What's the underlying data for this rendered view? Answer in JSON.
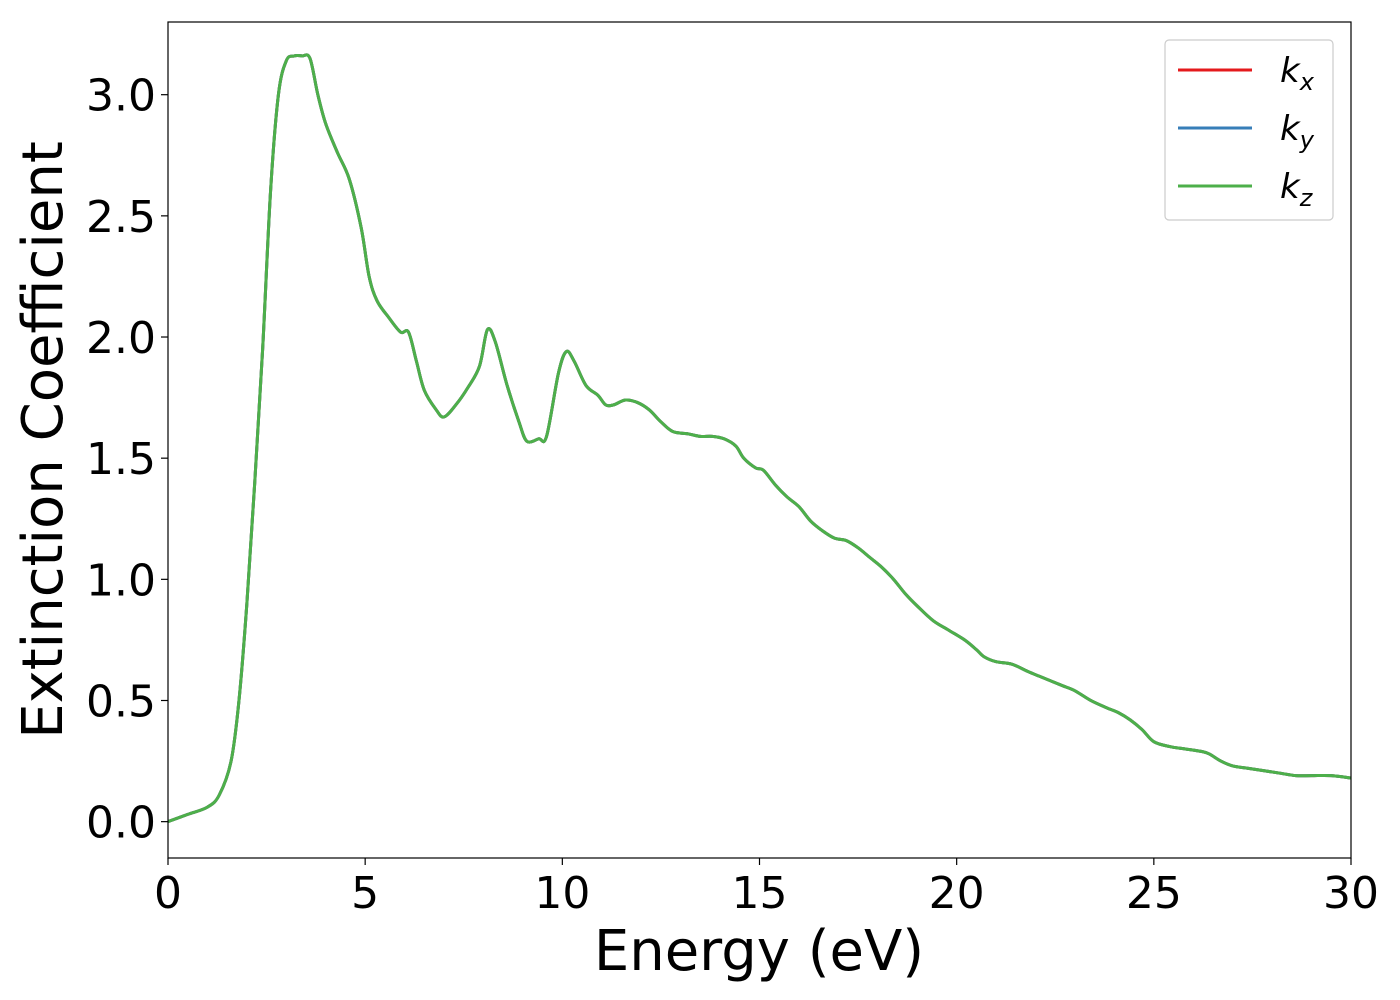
{
  "chart_data": {
    "type": "line",
    "title": "",
    "xlabel": "Energy (eV)",
    "ylabel": "Extinction Coefficient",
    "xlim": [
      0,
      30
    ],
    "ylim": [
      -0.15,
      3.3
    ],
    "xticks": [
      0,
      5,
      10,
      15,
      20,
      25,
      30
    ],
    "xtick_labels": [
      "0",
      "5",
      "10",
      "15",
      "20",
      "25",
      "30"
    ],
    "yticks": [
      0.0,
      0.5,
      1.0,
      1.5,
      2.0,
      2.5,
      3.0
    ],
    "ytick_labels": [
      "0.0",
      "0.5",
      "1.0",
      "1.5",
      "2.0",
      "2.5",
      "3.0"
    ],
    "grid": false,
    "legend_position": "top-right",
    "series": [
      {
        "name": "k",
        "subscript": "x",
        "color": "#e41a1c",
        "ref": "x"
      },
      {
        "name": "k",
        "subscript": "y",
        "color": "#377eb8",
        "ref": "x"
      },
      {
        "name": "k",
        "subscript": "z",
        "color": "#4daf4a",
        "ref": "x"
      }
    ],
    "x": [
      0,
      0.5,
      1.0,
      1.3,
      1.6,
      1.8,
      2.0,
      2.2,
      2.4,
      2.6,
      2.8,
      3.0,
      3.2,
      3.4,
      3.6,
      3.8,
      4.0,
      4.3,
      4.6,
      4.9,
      5.1,
      5.3,
      5.6,
      5.9,
      6.1,
      6.3,
      6.5,
      6.8,
      7.0,
      7.3,
      7.6,
      7.9,
      8.1,
      8.3,
      8.6,
      8.9,
      9.1,
      9.4,
      9.6,
      9.9,
      10.1,
      10.3,
      10.6,
      10.9,
      11.1,
      11.3,
      11.6,
      11.9,
      12.2,
      12.5,
      12.8,
      13.2,
      13.5,
      13.8,
      14.1,
      14.4,
      14.6,
      14.9,
      15.1,
      15.4,
      15.7,
      16.0,
      16.3,
      16.6,
      16.9,
      17.2,
      17.5,
      17.8,
      18.1,
      18.4,
      18.7,
      19.0,
      19.4,
      19.8,
      20.2,
      20.5,
      20.7,
      21.0,
      21.4,
      21.8,
      22.1,
      22.4,
      22.7,
      23.0,
      23.4,
      23.8,
      24.1,
      24.4,
      24.7,
      25.0,
      25.4,
      25.8,
      26.2,
      26.4,
      26.7,
      27.0,
      27.4,
      27.8,
      28.2,
      28.6,
      29.0,
      29.5,
      30.0
    ],
    "values": [
      0.0,
      0.03,
      0.06,
      0.11,
      0.25,
      0.5,
      0.9,
      1.4,
      1.95,
      2.6,
      3.0,
      3.14,
      3.16,
      3.16,
      3.15,
      3.0,
      2.88,
      2.76,
      2.65,
      2.45,
      2.25,
      2.15,
      2.08,
      2.02,
      2.02,
      1.9,
      1.78,
      1.7,
      1.67,
      1.72,
      1.79,
      1.88,
      2.03,
      1.98,
      1.8,
      1.65,
      1.57,
      1.58,
      1.59,
      1.85,
      1.94,
      1.9,
      1.8,
      1.76,
      1.72,
      1.72,
      1.74,
      1.73,
      1.7,
      1.65,
      1.61,
      1.6,
      1.59,
      1.59,
      1.58,
      1.55,
      1.5,
      1.46,
      1.45,
      1.39,
      1.34,
      1.3,
      1.24,
      1.2,
      1.17,
      1.16,
      1.13,
      1.09,
      1.05,
      1.0,
      0.94,
      0.89,
      0.83,
      0.79,
      0.75,
      0.71,
      0.68,
      0.66,
      0.65,
      0.62,
      0.6,
      0.58,
      0.56,
      0.54,
      0.5,
      0.47,
      0.45,
      0.42,
      0.38,
      0.33,
      0.31,
      0.3,
      0.29,
      0.28,
      0.25,
      0.23,
      0.22,
      0.21,
      0.2,
      0.19,
      0.19,
      0.19,
      0.18
    ]
  }
}
